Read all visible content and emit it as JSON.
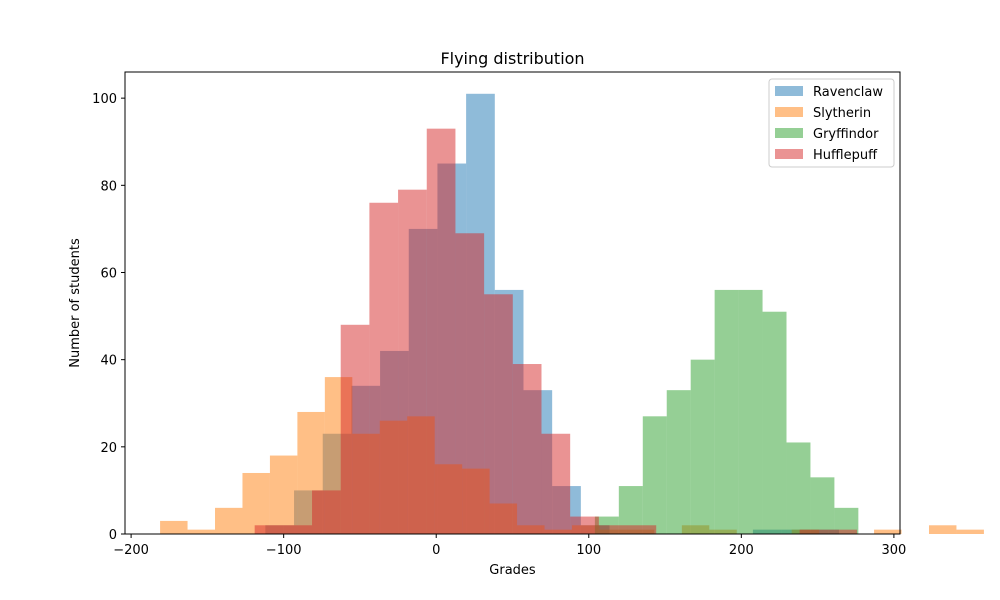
{
  "chart_data": {
    "type": "bar",
    "title": "Flying distribution",
    "xlabel": "Grades",
    "ylabel": "Number of students",
    "xlim": [
      -204,
      304
    ],
    "ylim": [
      0,
      106
    ],
    "xticks": [
      -200,
      -100,
      0,
      100,
      200,
      300
    ],
    "xtick_labels": [
      "−200",
      "−100",
      "0",
      "100",
      "200",
      "300"
    ],
    "yticks": [
      0,
      20,
      40,
      60,
      80,
      100
    ],
    "ytick_labels": [
      "0",
      "20",
      "40",
      "60",
      "80",
      "100"
    ],
    "grid": false,
    "legend_position": "top-right",
    "alpha": 0.5,
    "series": [
      {
        "name": "Ravenclaw",
        "color": "#1f77b4",
        "bin_start": -112,
        "bin_width": 18.8,
        "values": [
          2,
          10,
          23,
          34,
          42,
          70,
          85,
          101,
          56,
          33,
          11,
          2,
          0,
          0,
          0,
          0,
          0,
          1,
          1,
          1
        ]
      },
      {
        "name": "Slytherin",
        "color": "#ff7f0e",
        "bin_start": -181,
        "bin_width": 18,
        "values": [
          3,
          1,
          6,
          14,
          18,
          28,
          36,
          23,
          26,
          27,
          16,
          15,
          7,
          2,
          1,
          2,
          1,
          1,
          0,
          2,
          1,
          0,
          0,
          1,
          0,
          0,
          1,
          0,
          2,
          1,
          0,
          2,
          1,
          0,
          0,
          1
        ]
      },
      {
        "name": "Gryffindor",
        "color": "#2ca02c",
        "bin_start": 104,
        "bin_width": 15.7,
        "values": [
          4,
          11,
          27,
          33,
          40,
          56,
          56,
          51,
          21,
          13,
          6
        ]
      },
      {
        "name": "Hufflepuff",
        "color": "#d62728",
        "bin_start": -119,
        "bin_width": 18.8,
        "values": [
          2,
          2,
          10,
          48,
          76,
          79,
          93,
          69,
          55,
          39,
          23,
          4,
          2,
          2,
          0,
          0,
          0,
          0,
          0,
          1,
          1
        ]
      }
    ]
  }
}
